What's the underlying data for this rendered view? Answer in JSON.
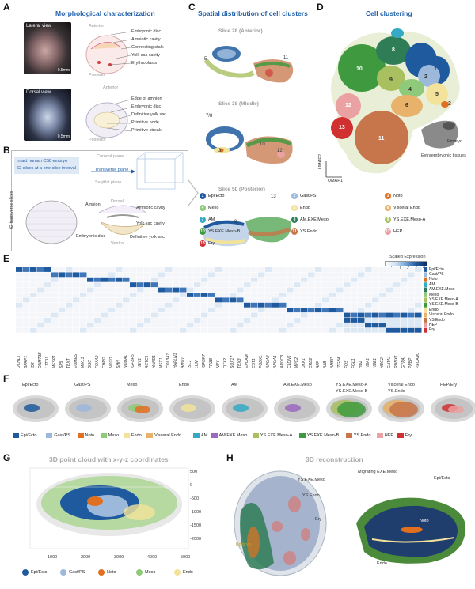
{
  "panels": {
    "A": {
      "label": "A",
      "title": "Morphological characterization",
      "lateral": "Lateral view",
      "dorsal": "Dorsal view",
      "scale1": "0.5mm",
      "scale2": "0.5mm",
      "top_anterior": "Anterior",
      "top_posterior": "Posterior",
      "top_labels": [
        "Embryonic disc",
        "Amniotic cavity",
        "Connecting stalk",
        "Yolk sac cavity",
        "Erythroblasts"
      ],
      "bot_anterior": "Anterior",
      "bot_posterior": "Posterior",
      "bot_labels": [
        "Edge of amnion",
        "Embryonic disc",
        "Definitive yolk sac",
        "Primitive node",
        "Primitive streak"
      ]
    },
    "B": {
      "label": "B",
      "line1": "Intact human CS8 embryo",
      "line2": "62 slices at a one-slice interval",
      "coronal": "Coronal plane",
      "transverse": "Transverse plane",
      "sagittal": "Sagittal plane",
      "slices_vert": "62 transverse slices",
      "amnion": "Amnion",
      "dorsal": "Dorsal",
      "amniotic": "Amniotic cavity",
      "yolk": "Yolk sac cavity",
      "embryonic": "Embryonic disc",
      "definitive": "Definitive yolk sac",
      "ventral": "Ventral"
    },
    "C": {
      "label": "C",
      "title": "Spatial distribution of cell clusters",
      "slice1": "Slice 28 (Anterior)",
      "slice2": "Slice 38 (Middle)",
      "slice3": "Slice 50 (Posterior)"
    },
    "D": {
      "label": "D",
      "title": "Cell clustering",
      "umap1": "UMAP1",
      "umap2": "UMAP2",
      "embryo": "Embryo",
      "extra": "Extraembryonic tissues"
    },
    "E": {
      "label": "E",
      "scaled": "Scaled Expression",
      "ticks": [
        "-1",
        "0",
        "1",
        "2",
        "3",
        "4"
      ]
    },
    "F": {
      "label": "F"
    },
    "G": {
      "label": "G",
      "title": "3D point cloud with x-y-z coordinates",
      "yticks": [
        "500",
        "0",
        "-500",
        "-1000",
        "-1500",
        "-2000"
      ],
      "xticks": [
        "1000",
        "2000",
        "3000",
        "4000",
        "5000"
      ]
    },
    "H": {
      "label": "H",
      "title": "3D reconstruction",
      "ys_exe": "YS.EXE.Meso",
      "ys_endo": "YS.Endo",
      "ery": "Ery",
      "embryo": "Embryo",
      "migrating": "Migrating EXE.Meso",
      "epi": "Epi/Ecto",
      "noto": "Noto",
      "endo": "Endo"
    }
  },
  "clusters": [
    {
      "n": "1",
      "name": "Epi/Ecto",
      "color": "#1f5a9e"
    },
    {
      "n": "2",
      "name": "Gast/PS",
      "color": "#9cb9dc"
    },
    {
      "n": "3",
      "name": "Noto",
      "color": "#e07020"
    },
    {
      "n": "4",
      "name": "Meso",
      "color": "#8fc97a"
    },
    {
      "n": "5",
      "name": "Endo",
      "color": "#f3e39a"
    },
    {
      "n": "6",
      "name": "Visceral Endo",
      "color": "#e8b26a"
    },
    {
      "n": "7",
      "name": "AM",
      "color": "#36a9c4"
    },
    {
      "n": "8",
      "name": "AM.EXE.Meso",
      "color": "#2f7d57"
    },
    {
      "n": "9",
      "name": "YS.EXE.Meso-A",
      "color": "#a8c060"
    },
    {
      "n": "10",
      "name": "YS.EXE.Meso-B",
      "color": "#3f9a3f"
    },
    {
      "n": "11",
      "name": "YS.Endo",
      "color": "#c7754a"
    },
    {
      "n": "12",
      "name": "HEP",
      "color": "#eaa1a1"
    },
    {
      "n": "13",
      "name": "Ery",
      "color": "#d03030"
    }
  ],
  "heatmap": {
    "rows": [
      "Epi/Ecto",
      "Gast/PS",
      "Noto",
      "AM",
      "AM.EXE.Meso",
      "Meso",
      "YS.EXE.Meso-A",
      "YS.EXE.Meso-B",
      "Endo",
      "Visceral Endo",
      "YS.Endo",
      "HEP",
      "Ery"
    ],
    "row_colors": [
      "#1f5a9e",
      "#9cb9dc",
      "#e07020",
      "#36a9c4",
      "#2f7d57",
      "#8fc97a",
      "#a8c060",
      "#3f9a3f",
      "#f3e39a",
      "#e8b26a",
      "#c7754a",
      "#eaa1a1",
      "#d03030"
    ],
    "genes": [
      "UCHL1",
      "SFRP1",
      "ID2",
      "DNMT3B",
      "L1TD1",
      "MESP1",
      "SP5",
      "TBXT",
      "EOMES",
      "MIXL1",
      "GSC",
      "FOXA2",
      "CHRD",
      "NOTO",
      "SHH",
      "NODAL",
      "IGFBP5",
      "HEY1",
      "ACTC1",
      "HAND1",
      "MSX1",
      "COL3A1",
      "HAPLN1",
      "AMOT",
      "ISL1",
      "LUM",
      "IGFBP7",
      "FRZB",
      "NPY",
      "OTX2",
      "SOX17",
      "TBX3",
      "EPCAM",
      "CST1",
      "PODXL",
      "APOA4",
      "APOA1",
      "APOC3",
      "CLDN6",
      "MPC2",
      "DKK1",
      "CRB2",
      "AFP",
      "ALB",
      "AMBP",
      "ITGB4",
      "FOS",
      "FGL1",
      "HBZ",
      "HBA1",
      "HBE1",
      "HBG2",
      "GATA1",
      "RUNX1",
      "GYPA",
      "PPBP",
      "PECAM1"
    ]
  },
  "panelF": {
    "groups": [
      "Epi/Ecto",
      "Gast/PS",
      "Meso",
      "Endo",
      "AM",
      "AM.EXE.Meso",
      "YS.EXE.Meso-A",
      "YS.EXE.Meso-B",
      "Visceral Endo",
      "YS.Endo",
      "HEP/Ery"
    ],
    "legend": [
      "Epi/Ecto",
      "Gast/PS",
      "Noto",
      "Meso",
      "Endo",
      "Visceral Endo",
      "AM",
      "AM.EXE.Meso",
      "YS.EXE.Meso-A",
      "YS.EXE.Meso-B",
      "YS.Endo",
      "HEP",
      "Ery"
    ]
  },
  "panelG_legend": [
    "Epi/Ecto",
    "Gast/PS",
    "Noto",
    "Meso",
    "Endo"
  ]
}
